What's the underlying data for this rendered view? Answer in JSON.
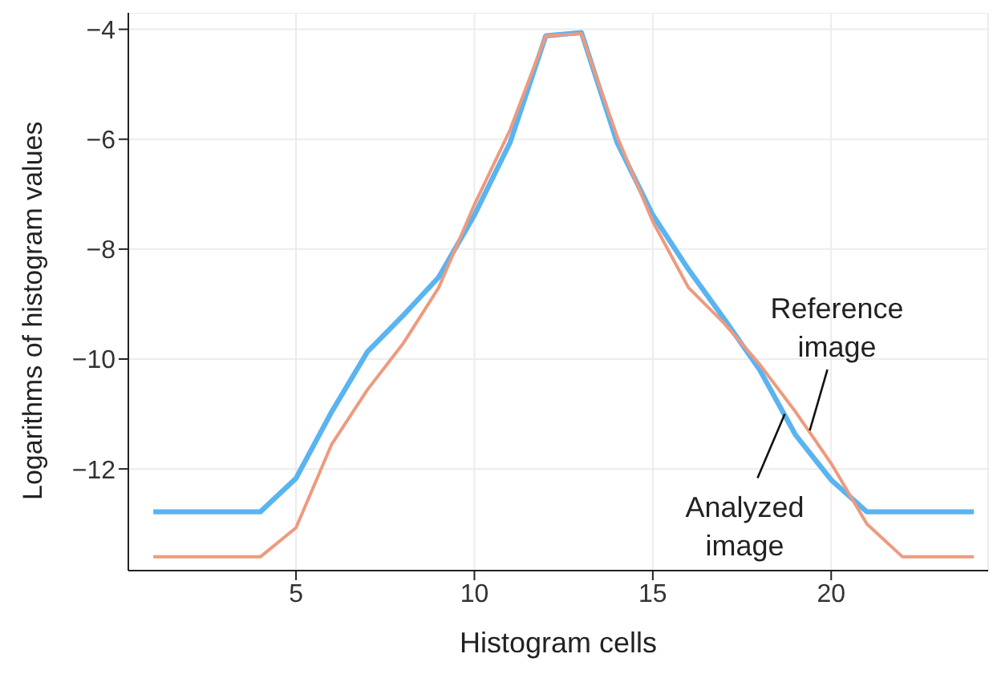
{
  "chart_data": {
    "type": "line",
    "xlabel": "Histogram cells",
    "ylabel": "Logarithms of histogram values",
    "x": [
      1,
      2,
      3,
      4,
      5,
      6,
      7,
      8,
      9,
      10,
      11,
      12,
      13,
      14,
      15,
      16,
      17,
      18,
      19,
      20,
      21,
      22,
      23,
      24
    ],
    "series": [
      {
        "color": "#5ab4f0",
        "values": [
          -12.78,
          -12.78,
          -12.78,
          -12.78,
          -12.17,
          -10.96,
          -9.87,
          -9.21,
          -8.51,
          -7.38,
          -6.06,
          -4.12,
          -4.06,
          -6.06,
          -7.38,
          -8.37,
          -9.27,
          -10.2,
          -11.38,
          -12.2,
          -12.78,
          -12.78,
          -12.78,
          -12.78
        ]
      },
      {
        "color": "#ee9a7e",
        "values": [
          -13.6,
          -13.6,
          -13.6,
          -13.6,
          -13.07,
          -11.55,
          -10.56,
          -9.72,
          -8.7,
          -7.19,
          -5.83,
          -4.12,
          -4.08,
          -5.95,
          -7.5,
          -8.7,
          -9.35,
          -10.1,
          -10.96,
          -11.9,
          -13.0,
          -13.6,
          -13.6,
          -13.6
        ]
      }
    ],
    "xlim": [
      0.3,
      24.4
    ],
    "ylim": [
      -13.85,
      -3.7
    ],
    "xticks": [
      5,
      10,
      15,
      20
    ],
    "yticks": [
      -12,
      -10,
      -8,
      -6,
      -4
    ],
    "grid": true,
    "line_style": "solid",
    "marker": "none",
    "annotations": [
      {
        "text": "Reference image",
        "x": 19.4,
        "y": -11.3
      },
      {
        "text": "Analyzed image",
        "x": 18.7,
        "y": -11.0
      }
    ]
  }
}
